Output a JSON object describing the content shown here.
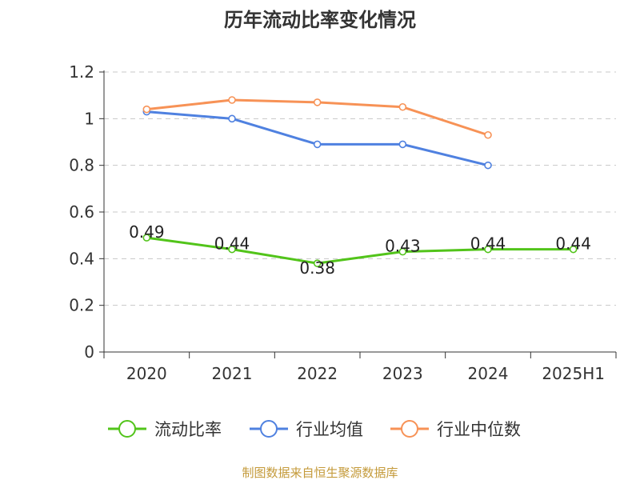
{
  "chart_data": {
    "type": "line",
    "title": "历年流动比率变化情况",
    "categories": [
      "2020",
      "2021",
      "2022",
      "2023",
      "2024",
      "2025H1"
    ],
    "ylim": [
      0,
      1.2
    ],
    "yticks": [
      "0",
      "0.2",
      "0.4",
      "0.6",
      "0.8",
      "1",
      "1.2"
    ],
    "grid": true,
    "legend_position": "bottom",
    "series": [
      {
        "name": "流动比率",
        "values": [
          0.49,
          0.44,
          0.38,
          0.43,
          0.44,
          0.44
        ],
        "labels": [
          "0.49",
          "0.44",
          "0.38",
          "0.43",
          "0.44",
          "0.44"
        ],
        "color": "#52c41a"
      },
      {
        "name": "行业均值",
        "values": [
          1.03,
          1.0,
          0.89,
          0.89,
          0.8,
          null
        ],
        "color": "#4f81e0"
      },
      {
        "name": "行业中位数",
        "values": [
          1.04,
          1.08,
          1.07,
          1.05,
          0.93,
          null
        ],
        "color": "#f79256"
      }
    ]
  },
  "source": "制图数据来自恒生聚源数据库"
}
